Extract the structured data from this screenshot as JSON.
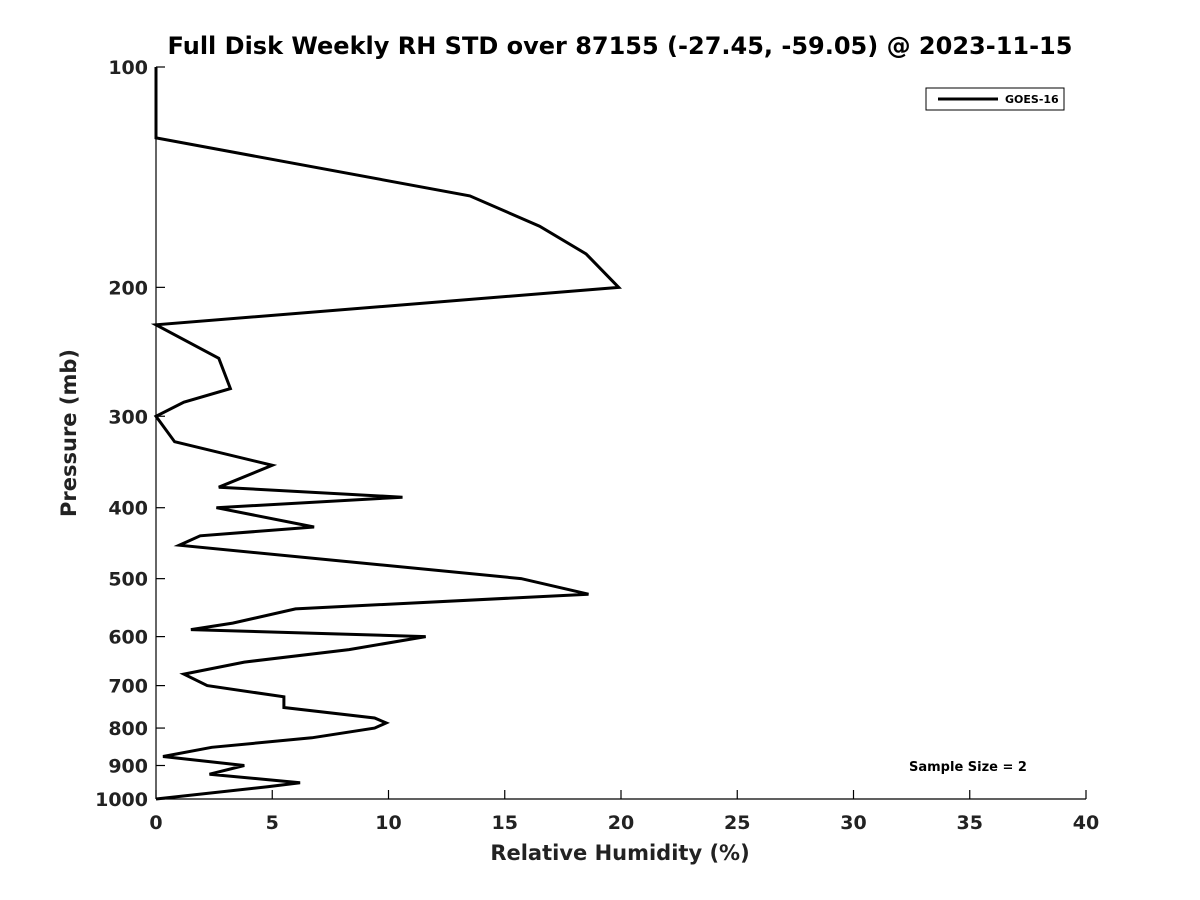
{
  "chart_data": {
    "type": "line",
    "title": "Full Disk Weekly RH STD over 87155 (-27.45, -59.05) @ 2023-11-15",
    "xlabel": "Relative Humidity (%)",
    "ylabel": "Pressure (mb)",
    "xlim": [
      0,
      40
    ],
    "ylim": [
      1000,
      100
    ],
    "yscale": "log",
    "y_reversed": true,
    "grid": false,
    "legend_position": "top-right",
    "x_ticks": [
      0,
      5,
      10,
      15,
      20,
      25,
      30,
      35,
      40
    ],
    "x_tick_labels": [
      "0",
      "5",
      "10",
      "15",
      "20",
      "25",
      "30",
      "35",
      "40"
    ],
    "y_ticks": [
      100,
      200,
      300,
      400,
      500,
      600,
      700,
      800,
      900,
      1000
    ],
    "y_tick_labels": [
      "100",
      "200",
      "300",
      "400",
      "500",
      "600",
      "700",
      "800",
      "900",
      "1000"
    ],
    "series": [
      {
        "name": "GOES-16",
        "color": "#000000",
        "points": [
          [
            0.0,
            100
          ],
          [
            0.0,
            125
          ],
          [
            13.5,
            150
          ],
          [
            16.5,
            165
          ],
          [
            18.5,
            180
          ],
          [
            19.9,
            200
          ],
          [
            0.0,
            225
          ],
          [
            2.7,
            250
          ],
          [
            3.2,
            275
          ],
          [
            1.2,
            287
          ],
          [
            0.0,
            300
          ],
          [
            0.8,
            325
          ],
          [
            5.0,
            350
          ],
          [
            2.7,
            375
          ],
          [
            10.6,
            387
          ],
          [
            2.6,
            400
          ],
          [
            6.8,
            425
          ],
          [
            1.9,
            437
          ],
          [
            1.0,
            450
          ],
          [
            15.7,
            500
          ],
          [
            18.6,
            525
          ],
          [
            6.0,
            550
          ],
          [
            3.3,
            575
          ],
          [
            1.5,
            587
          ],
          [
            11.6,
            600
          ],
          [
            8.3,
            625
          ],
          [
            3.8,
            650
          ],
          [
            1.2,
            675
          ],
          [
            2.2,
            700
          ],
          [
            5.5,
            725
          ],
          [
            5.5,
            750
          ],
          [
            9.4,
            775
          ],
          [
            9.9,
            787
          ],
          [
            9.4,
            800
          ],
          [
            6.7,
            825
          ],
          [
            2.4,
            850
          ],
          [
            0.3,
            875
          ],
          [
            3.8,
            900
          ],
          [
            2.3,
            925
          ],
          [
            6.2,
            950
          ],
          [
            4.8,
            962
          ],
          [
            0.0,
            1000
          ]
        ]
      }
    ],
    "annotations": [
      {
        "text": "Sample Size = 2",
        "position": "bottom-right"
      }
    ]
  }
}
